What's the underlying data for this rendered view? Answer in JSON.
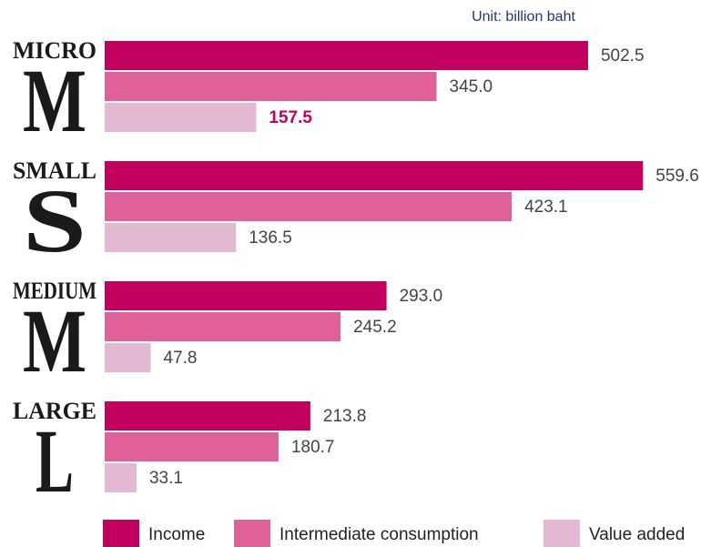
{
  "chart_data": {
    "type": "bar",
    "orientation": "horizontal",
    "unit": "Unit: billion baht",
    "categories": [
      "MICRO",
      "SMALL",
      "MEDIUM",
      "LARGE"
    ],
    "category_letters": [
      "M",
      "S",
      "M",
      "L"
    ],
    "series": [
      {
        "name": "Income",
        "color": "#c2005e",
        "values": [
          502.5,
          559.6,
          293.0,
          213.8
        ],
        "value_labels": [
          "502.5",
          "559.6",
          "293.0",
          "213.8"
        ]
      },
      {
        "name": "Intermediate consumption",
        "color": "#e0609a",
        "values": [
          345.0,
          423.1,
          245.2,
          180.7
        ],
        "value_labels": [
          "345.0",
          "423.1",
          "245.2",
          "180.7"
        ]
      },
      {
        "name": "Value added",
        "color": "#e2b8d3",
        "values": [
          157.5,
          136.5,
          47.8,
          33.1
        ],
        "value_labels": [
          "157.5",
          "136.5",
          "47.8",
          "33.1"
        ]
      }
    ],
    "highlight": {
      "series": 2,
      "index": 0,
      "color": "#c2005e"
    },
    "xlim": [
      0,
      600
    ],
    "grid": false,
    "legend": "bottom"
  }
}
